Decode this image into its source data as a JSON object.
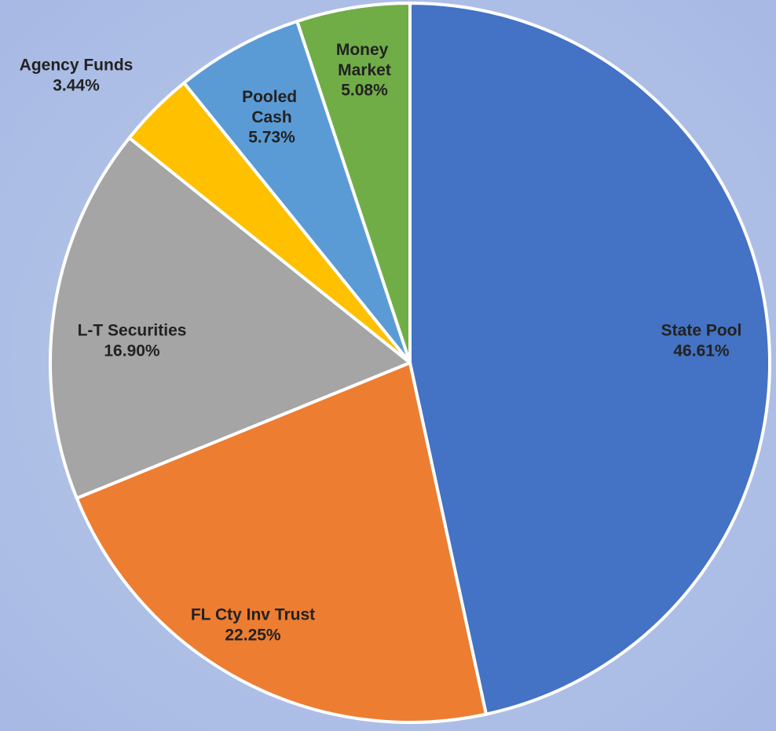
{
  "chart_data": {
    "type": "pie",
    "categories": [
      "State Pool",
      "FL Cty Inv Trust",
      "L-T Securities",
      "Agency Funds",
      "Pooled Cash",
      "Money Market"
    ],
    "values": [
      46.61,
      22.25,
      16.9,
      3.44,
      5.73,
      5.08
    ],
    "value_labels": [
      "46.61%",
      "22.25%",
      "16.90%",
      "3.44%",
      "5.73%",
      "5.08%"
    ],
    "colors": [
      "#4472c4",
      "#ed7d31",
      "#a5a5a5",
      "#ffc000",
      "#5b9bd5",
      "#70ad47"
    ]
  }
}
